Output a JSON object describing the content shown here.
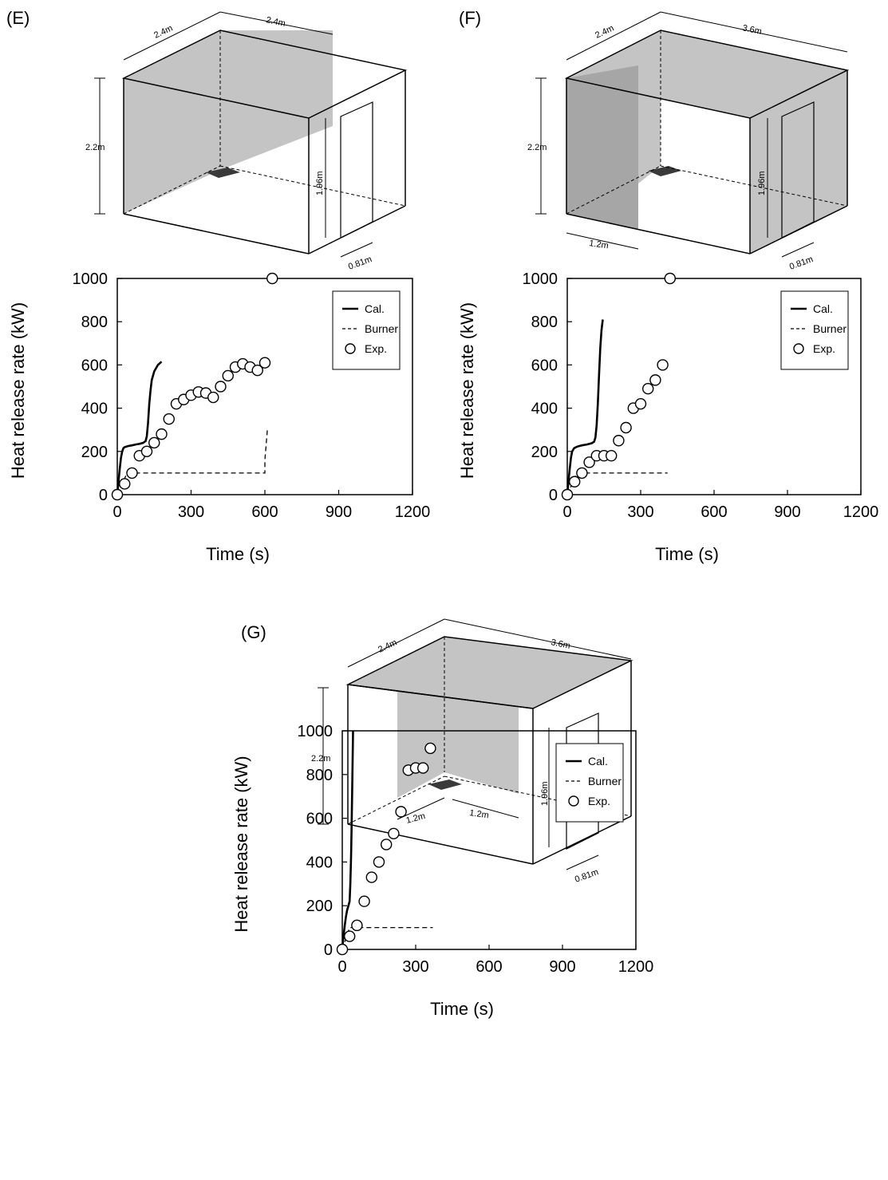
{
  "colors": {
    "wall_fill": "#c4c4c4",
    "wall_dark": "#a6a6a6",
    "burner_fill": "#3a3a3a",
    "line": "#000000",
    "marker_fill": "#ffffff"
  },
  "legend": {
    "cal": "Cal.",
    "burner": "Burner",
    "exp": "Exp."
  },
  "panels": [
    {
      "label": "(E)",
      "dims": {
        "w1": "2.4m",
        "w2": "2.4m",
        "h": "2.2m",
        "door_h": "1.96m",
        "door_w": "0.81m"
      }
    },
    {
      "label": "(F)",
      "dims": {
        "w1": "2.4m",
        "w2": "3.6m",
        "h": "2.2m",
        "door_h": "1.96m",
        "door_w": "0.81m",
        "seg1": "1.2m"
      }
    },
    {
      "label": "(G)",
      "dims": {
        "w1": "2.4m",
        "w2": "3.6m",
        "h": "2.2m",
        "door_h": "1.96m",
        "door_w": "0.81m",
        "seg1": "1.2m",
        "seg2": "1.2m"
      }
    }
  ],
  "chart_data": [
    {
      "type": "line",
      "xlabel": "Time (s)",
      "ylabel": "Heat release rate (kW)",
      "xlim": [
        0,
        1200
      ],
      "ylim": [
        0,
        1000
      ],
      "xticks": [
        0,
        300,
        600,
        900,
        1200
      ],
      "yticks": [
        0,
        200,
        400,
        600,
        800,
        1000
      ],
      "legend_position": "top-right",
      "series": [
        {
          "name": "Cal.",
          "style": "solid",
          "points": [
            [
              0,
              0
            ],
            [
              5,
              60
            ],
            [
              10,
              120
            ],
            [
              15,
              170
            ],
            [
              20,
              200
            ],
            [
              25,
              215
            ],
            [
              30,
              220
            ],
            [
              45,
              225
            ],
            [
              60,
              228
            ],
            [
              75,
              232
            ],
            [
              90,
              235
            ],
            [
              105,
              240
            ],
            [
              115,
              248
            ],
            [
              120,
              270
            ],
            [
              125,
              330
            ],
            [
              130,
              420
            ],
            [
              135,
              480
            ],
            [
              140,
              530
            ],
            [
              150,
              570
            ],
            [
              165,
              600
            ],
            [
              180,
              615
            ]
          ]
        },
        {
          "name": "Burner",
          "style": "dashed",
          "points": [
            [
              0,
              0
            ],
            [
              40,
              100
            ],
            [
              600,
              100
            ],
            [
              600,
              160
            ],
            [
              610,
              300
            ],
            [
              620,
              300
            ]
          ]
        },
        {
          "name": "Exp.",
          "style": "marker",
          "points": [
            [
              0,
              0
            ],
            [
              30,
              50
            ],
            [
              60,
              100
            ],
            [
              90,
              180
            ],
            [
              120,
              200
            ],
            [
              150,
              240
            ],
            [
              180,
              280
            ],
            [
              210,
              350
            ],
            [
              240,
              420
            ],
            [
              270,
              440
            ],
            [
              300,
              460
            ],
            [
              330,
              475
            ],
            [
              360,
              470
            ],
            [
              390,
              450
            ],
            [
              420,
              500
            ],
            [
              450,
              550
            ],
            [
              480,
              590
            ],
            [
              510,
              605
            ],
            [
              540,
              590
            ],
            [
              570,
              575
            ],
            [
              600,
              610
            ],
            [
              630,
              1000
            ]
          ]
        }
      ]
    },
    {
      "type": "line",
      "xlabel": "Time (s)",
      "ylabel": "Heat release rate (kW)",
      "xlim": [
        0,
        1200
      ],
      "ylim": [
        0,
        1000
      ],
      "xticks": [
        0,
        300,
        600,
        900,
        1200
      ],
      "yticks": [
        0,
        200,
        400,
        600,
        800,
        1000
      ],
      "legend_position": "top-right",
      "series": [
        {
          "name": "Cal.",
          "style": "solid",
          "points": [
            [
              0,
              0
            ],
            [
              5,
              60
            ],
            [
              10,
              120
            ],
            [
              15,
              170
            ],
            [
              20,
              200
            ],
            [
              28,
              215
            ],
            [
              40,
              222
            ],
            [
              60,
              228
            ],
            [
              80,
              232
            ],
            [
              100,
              238
            ],
            [
              110,
              245
            ],
            [
              115,
              265
            ],
            [
              120,
              320
            ],
            [
              125,
              420
            ],
            [
              130,
              560
            ],
            [
              135,
              680
            ],
            [
              140,
              760
            ],
            [
              145,
              810
            ]
          ]
        },
        {
          "name": "Burner",
          "style": "dashed",
          "points": [
            [
              0,
              0
            ],
            [
              40,
              100
            ],
            [
              410,
              100
            ]
          ]
        },
        {
          "name": "Exp.",
          "style": "marker",
          "points": [
            [
              0,
              0
            ],
            [
              30,
              60
            ],
            [
              60,
              100
            ],
            [
              90,
              150
            ],
            [
              120,
              180
            ],
            [
              150,
              180
            ],
            [
              180,
              180
            ],
            [
              210,
              250
            ],
            [
              240,
              310
            ],
            [
              270,
              400
            ],
            [
              300,
              420
            ],
            [
              330,
              490
            ],
            [
              360,
              530
            ],
            [
              390,
              600
            ],
            [
              420,
              1000
            ]
          ]
        }
      ]
    },
    {
      "type": "line",
      "xlabel": "Time (s)",
      "ylabel": "Heat release rate (kW)",
      "xlim": [
        0,
        1200
      ],
      "ylim": [
        0,
        1000
      ],
      "xticks": [
        0,
        300,
        600,
        900,
        1200
      ],
      "yticks": [
        0,
        200,
        400,
        600,
        800,
        1000
      ],
      "legend_position": "top-right",
      "series": [
        {
          "name": "Cal.",
          "style": "solid",
          "points": [
            [
              0,
              0
            ],
            [
              5,
              60
            ],
            [
              10,
              110
            ],
            [
              15,
              150
            ],
            [
              20,
              180
            ],
            [
              25,
              200
            ],
            [
              30,
              220
            ],
            [
              33,
              300
            ],
            [
              36,
              420
            ],
            [
              38,
              560
            ],
            [
              40,
              700
            ],
            [
              42,
              850
            ],
            [
              44,
              1000
            ]
          ]
        },
        {
          "name": "Burner",
          "style": "dashed",
          "points": [
            [
              0,
              0
            ],
            [
              30,
              100
            ],
            [
              370,
              100
            ]
          ]
        },
        {
          "name": "Exp.",
          "style": "marker",
          "points": [
            [
              0,
              0
            ],
            [
              30,
              60
            ],
            [
              60,
              110
            ],
            [
              90,
              220
            ],
            [
              120,
              330
            ],
            [
              150,
              400
            ],
            [
              180,
              480
            ],
            [
              210,
              530
            ],
            [
              240,
              630
            ],
            [
              270,
              820
            ],
            [
              300,
              830
            ],
            [
              330,
              830
            ],
            [
              360,
              920
            ]
          ]
        }
      ]
    }
  ]
}
